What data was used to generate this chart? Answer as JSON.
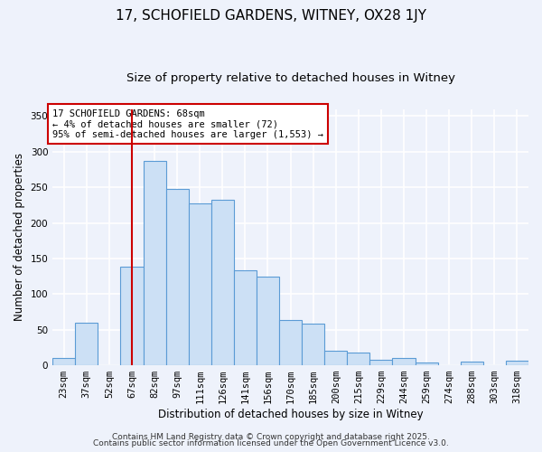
{
  "title": "17, SCHOFIELD GARDENS, WITNEY, OX28 1JY",
  "subtitle": "Size of property relative to detached houses in Witney",
  "xlabel": "Distribution of detached houses by size in Witney",
  "ylabel": "Number of detached properties",
  "bin_labels": [
    "23sqm",
    "37sqm",
    "52sqm",
    "67sqm",
    "82sqm",
    "97sqm",
    "111sqm",
    "126sqm",
    "141sqm",
    "156sqm",
    "170sqm",
    "185sqm",
    "200sqm",
    "215sqm",
    "229sqm",
    "244sqm",
    "259sqm",
    "274sqm",
    "288sqm",
    "303sqm",
    "318sqm"
  ],
  "bar_values": [
    10,
    60,
    0,
    138,
    287,
    248,
    227,
    232,
    134,
    125,
    63,
    59,
    20,
    18,
    8,
    10,
    4,
    0,
    5,
    0,
    6
  ],
  "bar_color": "#cce0f5",
  "bar_edge_color": "#5b9bd5",
  "bar_width": 1.0,
  "vline_x": 3,
  "vline_color": "#cc0000",
  "ylim": [
    0,
    360
  ],
  "yticks": [
    0,
    50,
    100,
    150,
    200,
    250,
    300,
    350
  ],
  "annotation_box_text": "17 SCHOFIELD GARDENS: 68sqm\n← 4% of detached houses are smaller (72)\n95% of semi-detached houses are larger (1,553) →",
  "annotation_box_color": "#ffffff",
  "annotation_box_edge_color": "#cc0000",
  "footer_line1": "Contains HM Land Registry data © Crown copyright and database right 2025.",
  "footer_line2": "Contains public sector information licensed under the Open Government Licence v3.0.",
  "background_color": "#eef2fb",
  "grid_color": "#ffffff",
  "title_fontsize": 11,
  "subtitle_fontsize": 9.5,
  "axis_label_fontsize": 8.5,
  "tick_fontsize": 7.5,
  "annotation_fontsize": 7.5,
  "footer_fontsize": 6.5
}
